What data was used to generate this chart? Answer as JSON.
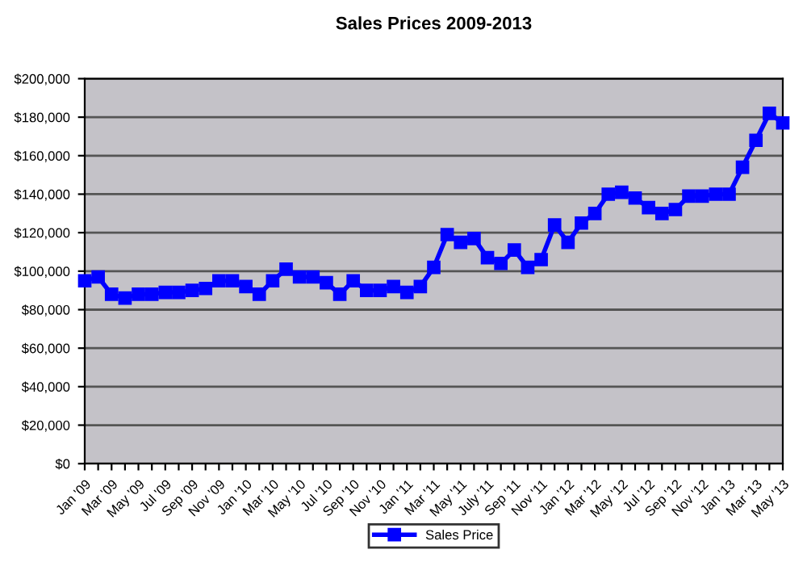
{
  "chart_data": {
    "type": "line",
    "title": "Sales Prices 2009-2013",
    "categories": [
      "Jan '09",
      null,
      "Mar '09",
      null,
      "May '09",
      null,
      "Jul '09",
      null,
      "Sep '09",
      null,
      "Nov '09",
      null,
      "Jan '10",
      null,
      "Mar '10",
      null,
      "May '10",
      null,
      "Jul '10",
      null,
      "Sep '10",
      null,
      "Nov '10",
      null,
      "Jan '11",
      null,
      "Mar '11",
      null,
      "May '11",
      null,
      "July '11",
      null,
      "Sep '11",
      null,
      "Nov '11",
      null,
      "Jan '12",
      null,
      "Mar '12",
      null,
      "May '12",
      null,
      "Jul '12",
      null,
      "Sep '12",
      null,
      "Nov '12",
      null,
      "Jan '13",
      null,
      "Mar '13",
      null,
      "May '13"
    ],
    "series": [
      {
        "name": "Sales Price",
        "color": "#0000ff",
        "values": [
          95000,
          97000,
          88000,
          86000,
          88000,
          88000,
          89000,
          89000,
          90000,
          91000,
          95000,
          95000,
          92000,
          88000,
          95000,
          101000,
          97000,
          97000,
          94000,
          88000,
          95000,
          90000,
          90000,
          92000,
          89000,
          92000,
          102000,
          119000,
          115000,
          117000,
          107000,
          104000,
          111000,
          102000,
          106000,
          124000,
          115000,
          125000,
          130000,
          140000,
          141000,
          138000,
          133000,
          130000,
          132000,
          139000,
          139000,
          140000,
          140000,
          154000,
          168000,
          182000,
          177000
        ]
      }
    ],
    "ylim": [
      0,
      200000
    ],
    "yticks": [
      {
        "value": 0,
        "label": "$0"
      },
      {
        "value": 20000,
        "label": "$20,000"
      },
      {
        "value": 40000,
        "label": "$40,000"
      },
      {
        "value": 60000,
        "label": "$60,000"
      },
      {
        "value": 80000,
        "label": "$80,000"
      },
      {
        "value": 100000,
        "label": "$100,000"
      },
      {
        "value": 120000,
        "label": "$120,000"
      },
      {
        "value": 140000,
        "label": "$140,000"
      },
      {
        "value": 160000,
        "label": "$160,000"
      },
      {
        "value": 180000,
        "label": "$180,000"
      },
      {
        "value": 200000,
        "label": "$200,000"
      }
    ],
    "grid": "y",
    "legend": "bottom",
    "marker": "square",
    "line_style": "solid"
  }
}
